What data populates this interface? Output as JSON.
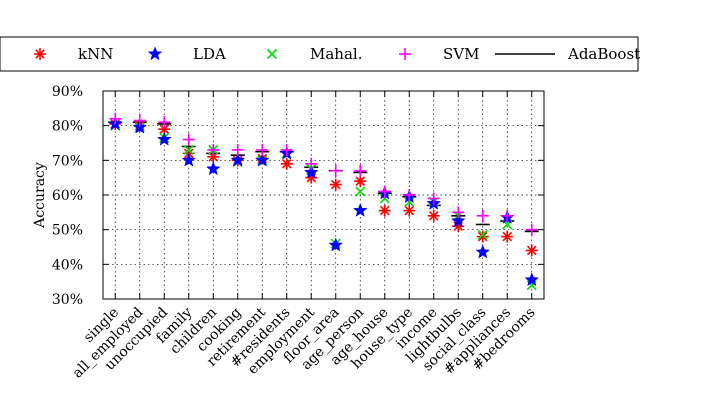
{
  "colors": {
    "kNN": "#ff0000",
    "LDA": "#0000ff",
    "Mahal.": "#00dd00",
    "SVM": "#ff00ff",
    "AdaBoost": "#000000"
  },
  "chart_data": {
    "type": "scatter",
    "title": "",
    "xlabel": "",
    "ylabel": "Accuracy",
    "ylim": [
      30,
      90
    ],
    "yticks": [
      "30%",
      "40%",
      "50%",
      "60%",
      "70%",
      "80%",
      "90%"
    ],
    "grid": true,
    "legend_position": "top",
    "categories": [
      "single",
      "all_employed",
      "unoccupied",
      "family",
      "children",
      "cooking",
      "retirement",
      "#residents",
      "employment",
      "floor_area",
      "age_person",
      "age_house",
      "house_type",
      "income",
      "lightbulbs",
      "social_class",
      "#appliances",
      "#bedrooms"
    ],
    "series": [
      {
        "name": "kNN",
        "marker": "asterisk",
        "values": [
          80.5,
          80,
          79,
          72,
          71,
          70,
          70.5,
          69,
          65,
          63,
          64,
          55.5,
          55.5,
          54,
          51,
          48,
          48,
          44
        ]
      },
      {
        "name": "LDA",
        "marker": "star",
        "values": [
          80.5,
          79.5,
          76,
          70,
          67.5,
          70,
          70,
          72,
          66.5,
          45.5,
          55.5,
          60.5,
          59.5,
          57.5,
          52.5,
          43.5,
          53.5,
          35.5
        ]
      },
      {
        "name": "Mahal.",
        "marker": "x",
        "values": [
          80,
          79.5,
          76.5,
          73,
          73,
          69.5,
          70,
          72,
          67.5,
          46,
          61,
          59,
          58,
          58,
          54,
          48.5,
          51.5,
          34
        ]
      },
      {
        "name": "SVM",
        "marker": "plus",
        "values": [
          82,
          81.5,
          81,
          76,
          73,
          73,
          73,
          73,
          69,
          67,
          67,
          61,
          60,
          59,
          55,
          54,
          54,
          50
        ]
      },
      {
        "name": "AdaBoost",
        "marker": "hline",
        "values": [
          81,
          81,
          80.5,
          74,
          72,
          71.5,
          72.5,
          72.5,
          68,
          67,
          66.5,
          60.5,
          59.5,
          57,
          54,
          51.5,
          52.5,
          49.5
        ]
      }
    ]
  }
}
